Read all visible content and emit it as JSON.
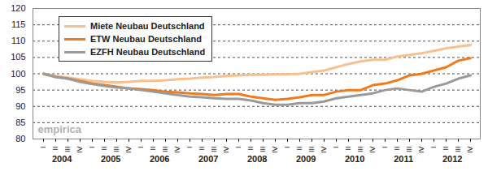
{
  "chart_data": {
    "type": "line",
    "categories": [
      "I",
      "II",
      "III",
      "IV",
      "I",
      "II",
      "III",
      "IV",
      "I",
      "II",
      "III",
      "IV",
      "I",
      "II",
      "III",
      "IV",
      "I",
      "II",
      "III",
      "IV",
      "I",
      "II",
      "III",
      "IV",
      "I",
      "II",
      "III",
      "IV",
      "I",
      "II",
      "III",
      "IV",
      "I",
      "II",
      "III",
      "IV"
    ],
    "years": [
      "2004",
      "2005",
      "2006",
      "2007",
      "2008",
      "2009",
      "2010",
      "2011",
      "2012"
    ],
    "series": [
      {
        "name": "Miete Neubau Deutschland",
        "color": "#f8c08e",
        "values": [
          100,
          99.3,
          98.8,
          98.3,
          97.8,
          97.5,
          97.3,
          97.5,
          97.8,
          97.8,
          98.0,
          98.3,
          98.5,
          98.8,
          99.0,
          99.3,
          99.5,
          99.7,
          99.7,
          99.8,
          99.8,
          100.0,
          100.5,
          101.0,
          102.0,
          103.0,
          103.8,
          104.3,
          104.3,
          105.3,
          105.8,
          106.3,
          107.0,
          107.8,
          108.3,
          108.8
        ]
      },
      {
        "name": "ETW Neubau Deutschland",
        "color": "#f07a1c",
        "values": [
          100,
          99.0,
          98.5,
          97.8,
          97.0,
          96.5,
          96.0,
          95.5,
          95.3,
          95.0,
          94.5,
          94.3,
          94.0,
          93.8,
          93.5,
          93.8,
          93.8,
          93.0,
          92.5,
          92.0,
          92.3,
          92.8,
          93.5,
          93.5,
          94.5,
          95.0,
          95.0,
          96.5,
          97.0,
          98.0,
          99.5,
          100.0,
          101.0,
          102.0,
          104.0,
          104.8
        ]
      },
      {
        "name": "EZFH Neubau Deutschland",
        "color": "#9a9a9a",
        "values": [
          100,
          99.0,
          98.5,
          97.5,
          96.8,
          96.3,
          95.8,
          95.5,
          95.0,
          94.5,
          94.0,
          93.5,
          93.0,
          92.8,
          92.5,
          92.3,
          92.3,
          91.8,
          91.0,
          90.5,
          90.5,
          91.0,
          91.0,
          91.5,
          92.5,
          93.0,
          93.5,
          94.0,
          95.0,
          95.5,
          95.0,
          94.5,
          96.0,
          97.0,
          98.5,
          99.5
        ]
      }
    ],
    "ylim": [
      80,
      120
    ],
    "yticks": [
      80,
      85,
      90,
      95,
      100,
      105,
      110,
      115,
      120
    ],
    "grid": true,
    "legend": "top-left",
    "annotations": [
      "empirica"
    ]
  }
}
